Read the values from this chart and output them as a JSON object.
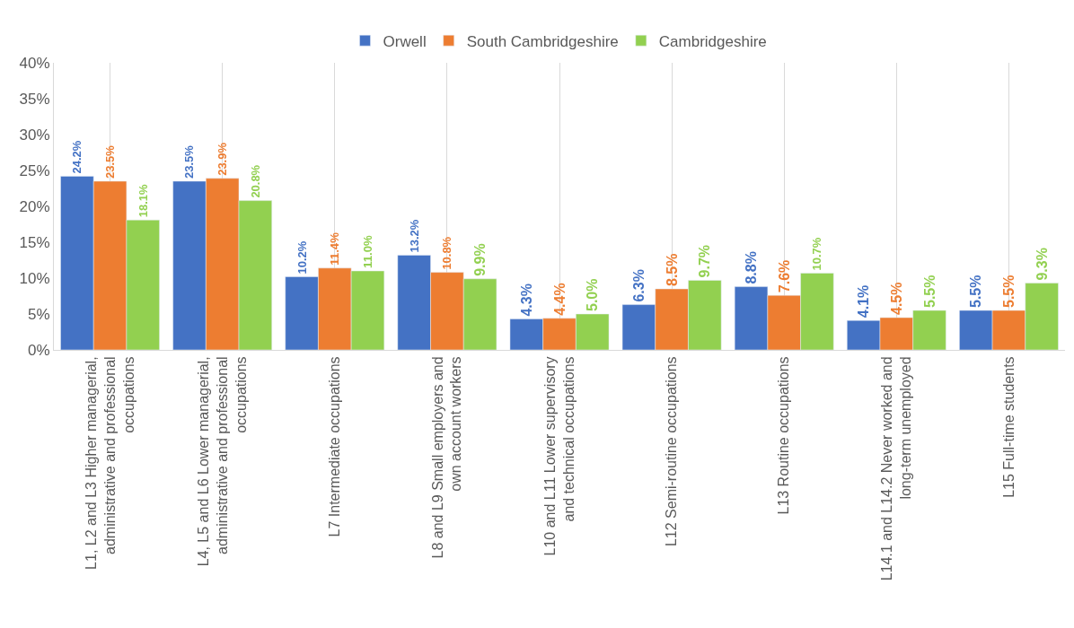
{
  "chart_data": {
    "type": "bar",
    "categories": [
      "L1, L2 and L3 Higher managerial, administrative and professional occupations",
      "L4, L5 and L6 Lower managerial, administrative and professional occupations",
      "L7 Intermediate occupations",
      "L8 and L9 Small employers and own account workers",
      "L10 and L11 Lower supervisory and technical occupations",
      "L12 Semi-routine occupations",
      "L13 Routine occupations",
      "L14.1 and L14.2 Never worked and long-term unemployed",
      "L15 Full-time students"
    ],
    "series": [
      {
        "name": "Orwell",
        "color": "#4472c4",
        "values": [
          24.2,
          23.5,
          10.2,
          13.2,
          4.3,
          6.3,
          8.8,
          4.1,
          5.5
        ],
        "value_labels": [
          "24.2%",
          "23.5%",
          "10.2%",
          "13.2%",
          "4.3%",
          "6.3%",
          "8.8%",
          "4.1%",
          "5.5%"
        ]
      },
      {
        "name": "South Cambridgeshire",
        "color": "#ed7d31",
        "values": [
          23.5,
          23.9,
          11.4,
          10.8,
          4.4,
          8.5,
          7.6,
          4.5,
          5.5
        ],
        "value_labels": [
          "23.5%",
          "23.9%",
          "11.4%",
          "10.8%",
          "4.4%",
          "8.5%",
          "7.6%",
          "4.5%",
          "5.5%"
        ]
      },
      {
        "name": "Cambridgeshire",
        "color": "#92d050",
        "values": [
          18.1,
          20.8,
          11.0,
          9.9,
          5.0,
          9.7,
          10.7,
          5.5,
          9.3
        ],
        "value_labels": [
          "18.1%",
          "20.8%",
          "11.0%",
          "9.9%",
          "5.0%",
          "9.7%",
          "10.7%",
          "5.5%",
          "9.3%"
        ]
      }
    ],
    "ylim": [
      0,
      40
    ],
    "yticks": [
      {
        "value": 0,
        "label": "0%"
      },
      {
        "value": 5,
        "label": "5%"
      },
      {
        "value": 10,
        "label": "10%"
      },
      {
        "value": 15,
        "label": "15%"
      },
      {
        "value": 20,
        "label": "20%"
      },
      {
        "value": 25,
        "label": "25%"
      },
      {
        "value": 30,
        "label": "30%"
      },
      {
        "value": 35,
        "label": "35%"
      },
      {
        "value": 40,
        "label": "40%"
      }
    ],
    "grid": "x",
    "legend": "top"
  }
}
